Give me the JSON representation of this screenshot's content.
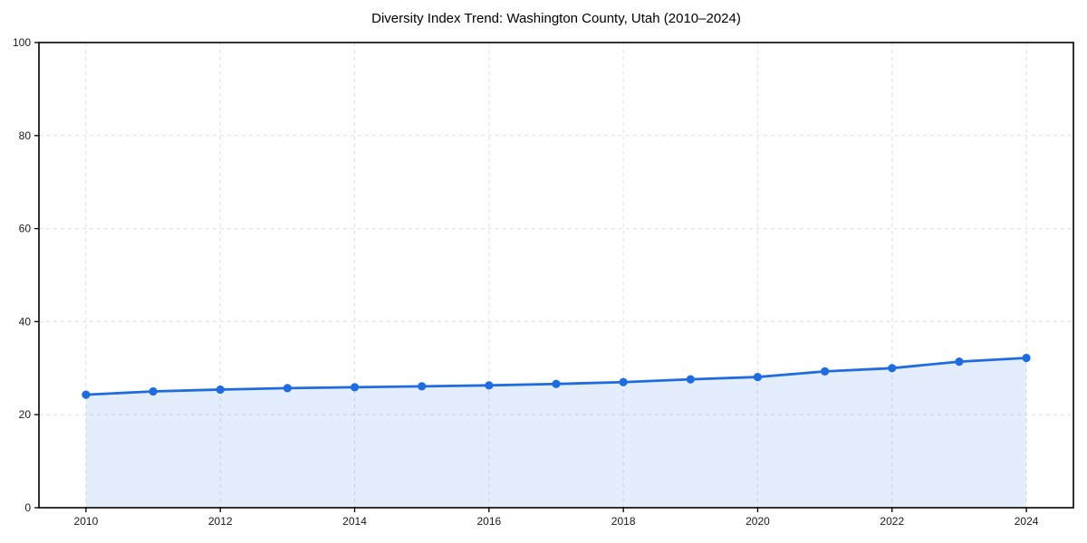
{
  "page": {
    "background": "#ffffff"
  },
  "chart_data": {
    "type": "line",
    "title": "Diversity Index Trend: Washington County, Utah (2010–2024)",
    "series": [
      {
        "name": "Diversity Index",
        "x": [
          2010,
          2011,
          2012,
          2013,
          2014,
          2015,
          2016,
          2017,
          2018,
          2019,
          2020,
          2021,
          2022,
          2023,
          2024
        ],
        "values": [
          24.3,
          25.0,
          25.4,
          25.7,
          25.9,
          26.1,
          26.3,
          26.6,
          27.0,
          27.6,
          28.1,
          29.3,
          30.0,
          31.4,
          32.2
        ]
      }
    ],
    "xlabel": "",
    "ylabel": "",
    "xticks": [
      2010,
      2012,
      2014,
      2016,
      2018,
      2020,
      2022,
      2024
    ],
    "yticks": [
      0,
      20,
      40,
      60,
      80,
      100
    ],
    "xlim": [
      2009.3,
      2024.7
    ],
    "ylim": [
      0,
      100
    ],
    "grid": true,
    "grid_style": "dashed",
    "legend": "none",
    "marker": "circle",
    "area_fill": true,
    "colors": {
      "line": "#1f6ce0",
      "area": "#1f6ce0",
      "area_opacity": 0.12,
      "grid": "#dedede",
      "axis": "#000000",
      "tick_label": "#1a1a1a",
      "title": "#000000",
      "background": "#ffffff"
    }
  }
}
